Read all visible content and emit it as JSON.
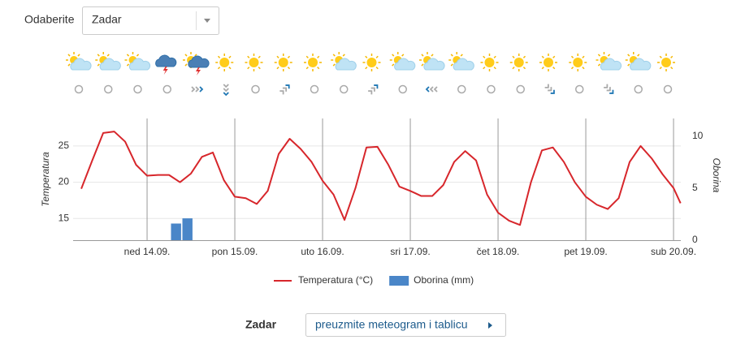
{
  "header": {
    "label": "Odaberite",
    "select_value": "Zadar"
  },
  "chart_data": {
    "type": "line",
    "ylabel": "Temperatura",
    "y2label": "Oborina",
    "x": [
      13.25,
      13.375,
      13.5,
      13.625,
      13.75,
      13.875,
      14.0,
      14.125,
      14.25,
      14.375,
      14.5,
      14.625,
      14.75,
      14.875,
      15.0,
      15.125,
      15.25,
      15.375,
      15.5,
      15.625,
      15.75,
      15.875,
      16.0,
      16.125,
      16.25,
      16.375,
      16.5,
      16.625,
      16.75,
      16.875,
      17.0,
      17.125,
      17.25,
      17.375,
      17.5,
      17.625,
      17.75,
      17.875,
      18.0,
      18.125,
      18.25,
      18.375,
      18.5,
      18.625,
      18.75,
      18.875,
      19.0,
      19.125,
      19.25,
      19.375,
      19.5,
      19.625,
      19.75,
      19.875,
      20.0,
      20.08
    ],
    "series": [
      {
        "name": "Temperatura (°C)",
        "color": "#d7262b",
        "values": [
          19.1,
          23.0,
          26.8,
          27.0,
          25.6,
          22.4,
          20.9,
          21.0,
          21.0,
          20.0,
          21.2,
          23.5,
          24.1,
          20.3,
          18.0,
          17.8,
          17.0,
          18.8,
          23.9,
          26.0,
          24.6,
          22.8,
          20.2,
          18.3,
          14.8,
          19.2,
          24.8,
          24.9,
          22.4,
          19.4,
          18.8,
          18.1,
          18.1,
          19.6,
          22.8,
          24.3,
          23.0,
          18.3,
          15.8,
          14.7,
          14.1,
          20.0,
          24.4,
          24.8,
          22.8,
          20.0,
          18.0,
          16.9,
          16.3,
          17.8,
          22.8,
          25.0,
          23.3,
          21.1,
          19.2,
          17.1
        ]
      },
      {
        "name": "Oborina (mm)",
        "color": "#4a86c8",
        "type": "bar",
        "axis": "y2",
        "x": [
          14.33,
          14.46
        ],
        "values": [
          1.6,
          2.1
        ]
      }
    ],
    "xlim": [
      13.157,
      20.083
    ],
    "xticks": [
      {
        "value": 14,
        "label": "ned 14.09."
      },
      {
        "value": 15,
        "label": "pon 15.09."
      },
      {
        "value": 16,
        "label": "uto 16.09."
      },
      {
        "value": 17,
        "label": "sri 17.09."
      },
      {
        "value": 18,
        "label": "čet 18.09."
      },
      {
        "value": 19,
        "label": "pet 19.09."
      },
      {
        "value": 20,
        "label": "sub 20.09."
      }
    ],
    "ylim": [
      12,
      28.8
    ],
    "yticks": [
      15,
      20,
      25
    ],
    "y2lim": [
      0,
      11.7
    ],
    "y2ticks": [
      0,
      5,
      10
    ],
    "grid": true
  },
  "footer": {
    "location": "Zadar",
    "button": "preuzmite meteogram i tablicu"
  }
}
